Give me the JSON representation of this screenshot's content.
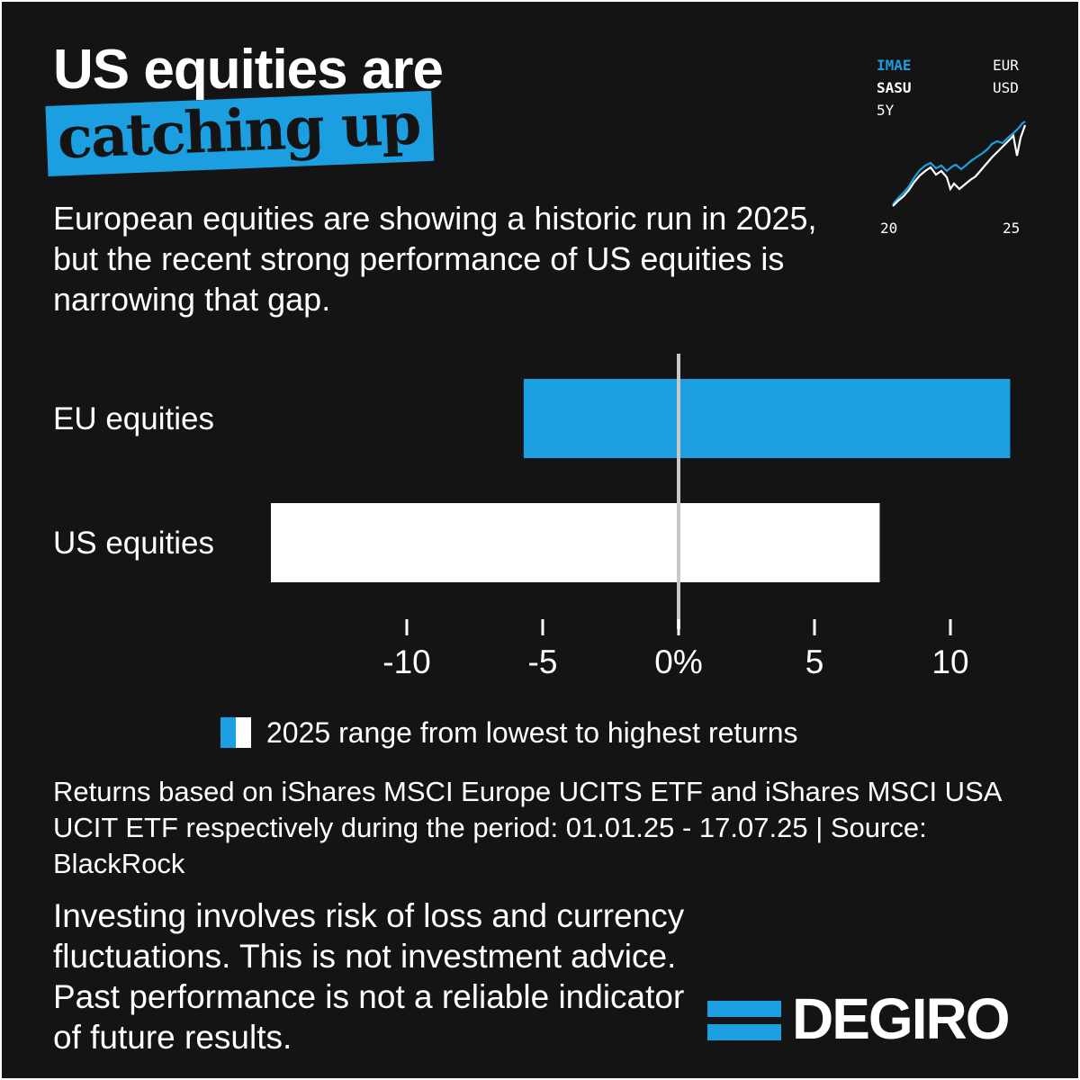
{
  "header": {
    "title": "US equities are",
    "highlight": "catching up",
    "subtitle": "European equities are showing a historic run in 2025, but the recent strong performance of US equities is narrowing that gap."
  },
  "mini_chart": {
    "ticker_1": "IMAE",
    "currency_1": "EUR",
    "ticker_2": "SASU",
    "currency_2": "USD",
    "period": "5Y",
    "x_start_label": "20",
    "x_end_label": "25"
  },
  "chart_data": {
    "type": "bar",
    "orientation": "horizontal",
    "chart_kind": "range",
    "categories": [
      "EU equities",
      "US equities"
    ],
    "series": [
      {
        "name": "EU equities",
        "low": -5.7,
        "high": 12.2,
        "color": "#1c9fe0"
      },
      {
        "name": "US equities",
        "low": -15.0,
        "high": 7.4,
        "color": "#ffffff"
      }
    ],
    "xlim": [
      -15,
      12.5
    ],
    "xticks": [
      -10,
      -5,
      0,
      5,
      10
    ],
    "xtick_labels": [
      "-10",
      "-5",
      "0%",
      "5",
      "10"
    ],
    "legend": "2025 range from lowest to highest returns",
    "legend_position": "bottom",
    "grid": false,
    "zero_line": true
  },
  "footnote": "Returns based on iShares MSCI Europe UCITS ETF and iShares MSCI USA UCIT ETF respectively during the period: 01.01.25 - 17.07.25 | Source: BlackRock",
  "disclaimer": "Investing involves risk of loss and currency fluctuations. This is not investment advice. Past performance is not a reliable indicator of future results.",
  "brand": {
    "name": "DEGIRO",
    "accent": "#1c9fe0",
    "background": "#141414",
    "text": "#ffffff"
  }
}
